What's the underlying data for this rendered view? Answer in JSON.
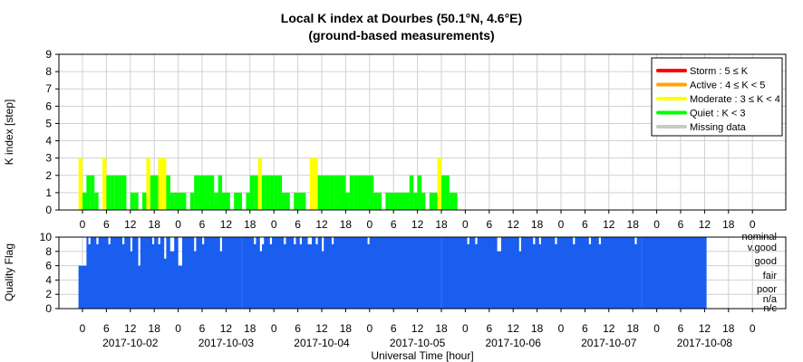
{
  "chart_data": [
    {
      "type": "bar",
      "title": "Local K index at Dourbes (50.1°N, 4.6°E)",
      "subtitle": "(ground-based measurements)",
      "ylabel": "K index [step]",
      "ylim": [
        0,
        9
      ],
      "yticks": [
        "0",
        "1",
        "2",
        "3",
        "4",
        "5",
        "6",
        "7",
        "8",
        "9"
      ],
      "bin_hours": 1,
      "start": "2017-10-01T23:00",
      "xticks": [
        "0",
        "6",
        "12",
        "18",
        "0",
        "6",
        "12",
        "18",
        "0",
        "6",
        "12",
        "18",
        "0",
        "6",
        "12",
        "18",
        "0",
        "6",
        "12",
        "18",
        "0",
        "6",
        "12",
        "18",
        "0",
        "6",
        "12",
        "18",
        "0"
      ],
      "colors": {
        "storm": "#ff0000",
        "active": "#ffa500",
        "moderate": "#ffff00",
        "quiet": "#00ff00",
        "missing": "#c8c8c8"
      },
      "legend_position": "top-right",
      "legend": [
        {
          "label": "Storm : 5 ≤ K",
          "color": "#ff0000"
        },
        {
          "label": "Active : 4 ≤ K < 5",
          "color": "#ffa500"
        },
        {
          "label": "Moderate : 3 ≤ K < 4",
          "color": "#ffff00"
        },
        {
          "label": "Quiet : K < 3",
          "color": "#00ff00"
        },
        {
          "label": "Missing data",
          "color": "#c8c8c8"
        }
      ],
      "values": [
        3,
        1,
        2,
        2,
        1,
        0,
        3,
        2,
        2,
        2,
        2,
        2,
        0,
        1,
        1,
        0,
        1,
        3,
        2,
        2,
        3,
        3,
        2,
        1,
        1,
        1,
        1,
        0,
        1,
        2,
        2,
        2,
        2,
        2,
        1,
        2,
        1,
        1,
        0,
        1,
        1,
        0,
        1,
        2,
        2,
        3,
        2,
        2,
        2,
        2,
        2,
        1,
        1,
        0,
        1,
        1,
        1,
        0,
        3,
        3,
        2,
        2,
        2,
        2,
        2,
        2,
        2,
        1,
        2,
        2,
        2,
        2,
        2,
        2,
        1,
        1,
        0,
        1,
        1,
        1,
        1,
        1,
        1,
        2,
        1,
        2,
        1,
        0,
        1,
        1,
        3,
        2,
        2,
        1,
        1,
        0,
        0
      ]
    },
    {
      "type": "area",
      "ylabel": "Quality Flag",
      "xlabel": "Universal Time [hour]",
      "ylim": [
        0,
        10
      ],
      "yticks": [
        "0",
        "2",
        "4",
        "6",
        "8",
        "10"
      ],
      "bin_minutes": 30,
      "start": "2017-10-01T23:00",
      "color": "#1a5ef0",
      "xticks": [
        "0",
        "6",
        "12",
        "18",
        "0",
        "6",
        "12",
        "18",
        "0",
        "6",
        "12",
        "18",
        "0",
        "6",
        "12",
        "18",
        "0",
        "6",
        "12",
        "18",
        "0",
        "6",
        "12",
        "18",
        "0",
        "6",
        "12",
        "18",
        "0"
      ],
      "date_labels": [
        "2017-10-02",
        "2017-10-03",
        "2017-10-04",
        "2017-10-05",
        "2017-10-06",
        "2017-10-07",
        "2017-10-08"
      ],
      "flag_labels": [
        "nominal",
        "v.good",
        "good",
        "fair",
        "poor",
        "n/a",
        "n/c"
      ],
      "quality_values": [
        6,
        6,
        6,
        6,
        10,
        9,
        10,
        10,
        10,
        9,
        10,
        10,
        10,
        10,
        10,
        9,
        10,
        10,
        10,
        10,
        10,
        10,
        9,
        10,
        10,
        10,
        8,
        10,
        10,
        10,
        6,
        10,
        10,
        10,
        10,
        10,
        10,
        9,
        10,
        10,
        9,
        10,
        10,
        7,
        10,
        10,
        8,
        8,
        10,
        10,
        6,
        6,
        10,
        10,
        10,
        10,
        10,
        10,
        8,
        10,
        10,
        10,
        9,
        10,
        10,
        10,
        10,
        10,
        10,
        10,
        10,
        8,
        10,
        10,
        10,
        10,
        10,
        10,
        10,
        10,
        10,
        10,
        10,
        10,
        10,
        10,
        10,
        10,
        9,
        10,
        10,
        8,
        9,
        10,
        10,
        10,
        9,
        10,
        10,
        10,
        10,
        10,
        10,
        9,
        10,
        10,
        10,
        10,
        9,
        10,
        10,
        9,
        10,
        10,
        10,
        9,
        9,
        10,
        10,
        9,
        10,
        10,
        8,
        10,
        10,
        10,
        10,
        9,
        10,
        10,
        10,
        10,
        10,
        10,
        10,
        10,
        10,
        10,
        10,
        10,
        10,
        10,
        10,
        10,
        10,
        9,
        10,
        10,
        10,
        10,
        10,
        10,
        10,
        10,
        10,
        10,
        10,
        10,
        10,
        10,
        10,
        10,
        10,
        10,
        10,
        10,
        10,
        10,
        10,
        10,
        10,
        10,
        10,
        10,
        10,
        10,
        10,
        10,
        10,
        10,
        10,
        10,
        10,
        10,
        10,
        10,
        10,
        10,
        10,
        10,
        10,
        10,
        10,
        10,
        10,
        9,
        10,
        10,
        10,
        9,
        10,
        10,
        10,
        10,
        10,
        10,
        10,
        10,
        10,
        10,
        8,
        8,
        10,
        10,
        10,
        10,
        10,
        10,
        10,
        10,
        10,
        8,
        10,
        10,
        10,
        10,
        10,
        10,
        9,
        10,
        10,
        9,
        10,
        10,
        10,
        10,
        10,
        10,
        10,
        9,
        10,
        10,
        10,
        10,
        10,
        10,
        10,
        10,
        9,
        10,
        10,
        10,
        10,
        10,
        10,
        10,
        9,
        10,
        10,
        10,
        10,
        9,
        10,
        10,
        10,
        10,
        10,
        10,
        10,
        10,
        10,
        10,
        10,
        10,
        10,
        10,
        10,
        10,
        10,
        9,
        10,
        10,
        10,
        10,
        10,
        10,
        10,
        10,
        10,
        10,
        10,
        10,
        10,
        10,
        10,
        10,
        10,
        10,
        10,
        10,
        10,
        10,
        10,
        10,
        10,
        10,
        10,
        10,
        10,
        10,
        10,
        10,
        10,
        10,
        10
      ]
    }
  ]
}
